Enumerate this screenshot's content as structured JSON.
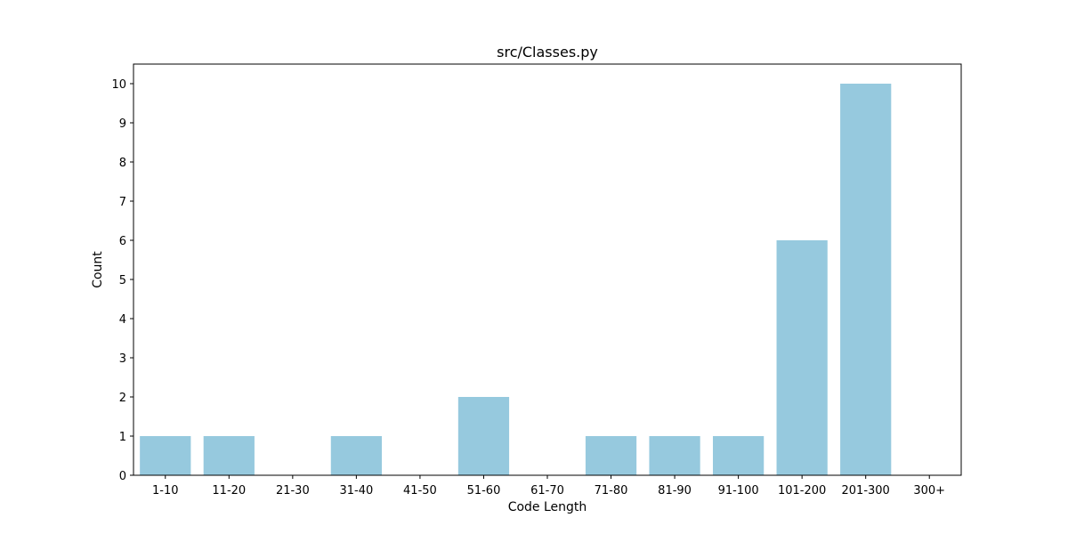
{
  "chart_data": {
    "type": "bar",
    "title": "src/Classes.py",
    "xlabel": "Code Length",
    "ylabel": "Count",
    "categories": [
      "1-10",
      "11-20",
      "21-30",
      "31-40",
      "41-50",
      "51-60",
      "61-70",
      "71-80",
      "81-90",
      "91-100",
      "101-200",
      "201-300",
      "300+"
    ],
    "values": [
      1,
      1,
      0,
      1,
      0,
      2,
      0,
      1,
      1,
      1,
      6,
      10,
      0
    ],
    "ylim": [
      0,
      10.5
    ],
    "yticks": [
      "0",
      "1",
      "2",
      "3",
      "4",
      "5",
      "6",
      "7",
      "8",
      "9",
      "10"
    ],
    "grid": false,
    "bar_color": "#96c9de",
    "axis_color": "#000000"
  }
}
